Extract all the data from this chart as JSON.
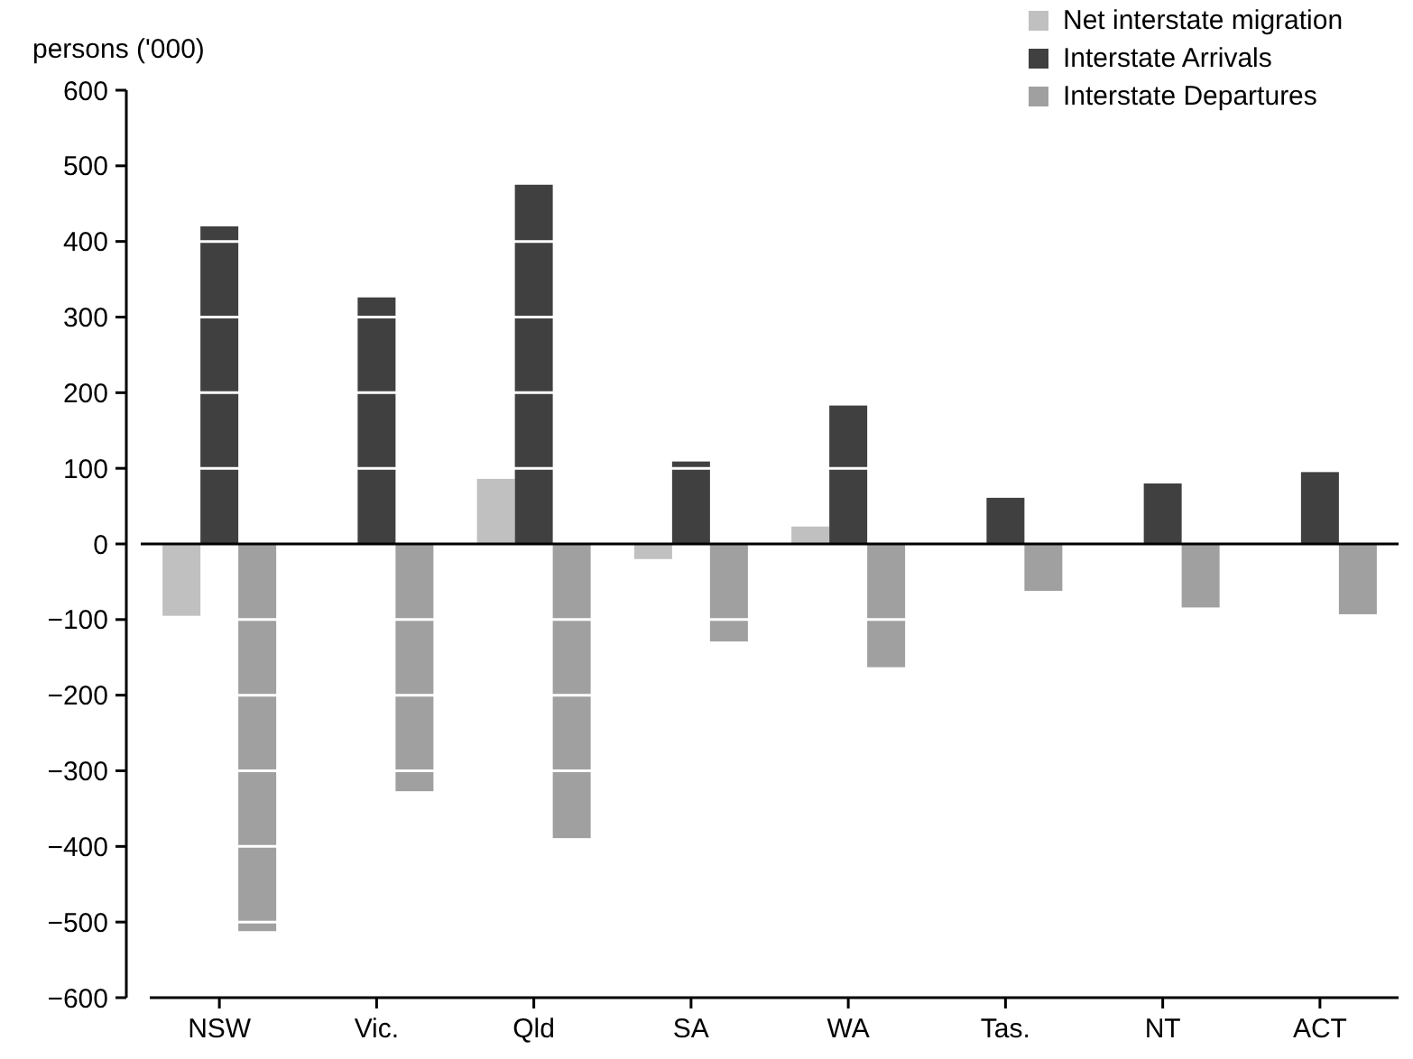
{
  "chart_data": {
    "type": "bar",
    "ylabel": "persons ('000)",
    "categories": [
      "NSW",
      "Vic.",
      "Qld",
      "SA",
      "WA",
      "Tas.",
      "NT",
      "ACT"
    ],
    "series": [
      {
        "name": "Net interstate migration",
        "color": "#c0c0c0",
        "values": [
          -95,
          null,
          86,
          -20,
          23,
          null,
          null,
          null
        ]
      },
      {
        "name": "Interstate Arrivals",
        "color": "#404040",
        "values": [
          420,
          326,
          475,
          109,
          183,
          61,
          80,
          95
        ]
      },
      {
        "name": "Interstate Departures",
        "color": "#a0a0a0",
        "values": [
          -512,
          -327,
          -389,
          -129,
          -163,
          -62,
          -84,
          -93
        ]
      }
    ],
    "ylim": [
      -600,
      600
    ],
    "yticks": [
      -600,
      -500,
      -400,
      -300,
      -200,
      -100,
      0,
      100,
      200,
      300,
      400,
      500,
      600
    ],
    "grid": "y",
    "legend": "top right"
  }
}
